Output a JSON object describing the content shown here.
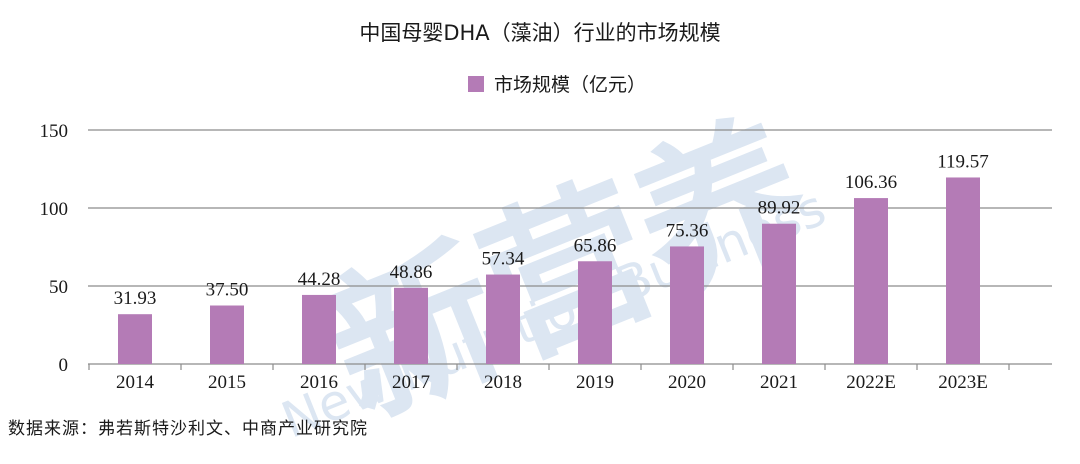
{
  "watermark": {
    "brand": "新营养",
    "subtitle": "New Nutrition Business"
  },
  "chart_data": {
    "type": "bar",
    "title": "中国母婴DHA（藻油）行业的市场规模",
    "categories": [
      "2014",
      "2015",
      "2016",
      "2017",
      "2018",
      "2019",
      "2020",
      "2021",
      "2022E",
      "2023E"
    ],
    "series": [
      {
        "name": "市场规模（亿元）",
        "values": [
          31.93,
          37.5,
          44.28,
          48.86,
          57.34,
          65.86,
          75.36,
          89.92,
          106.36,
          119.57
        ],
        "labels": [
          "31.93",
          "37.50",
          "44.28",
          "48.86",
          "57.34",
          "65.86",
          "75.36",
          "89.92",
          "106.36",
          "119.57"
        ]
      }
    ],
    "ylim": [
      0,
      150
    ],
    "yticks": [
      "0",
      "50",
      "100",
      "150"
    ],
    "grid": true,
    "legend_position": "top-center",
    "colors": {
      "bar": "#b47bb6",
      "grid": "#8c8c8c",
      "watermark": "#dde6f1"
    }
  },
  "source_note": "数据来源：弗若斯特沙利文、中商产业研究院"
}
